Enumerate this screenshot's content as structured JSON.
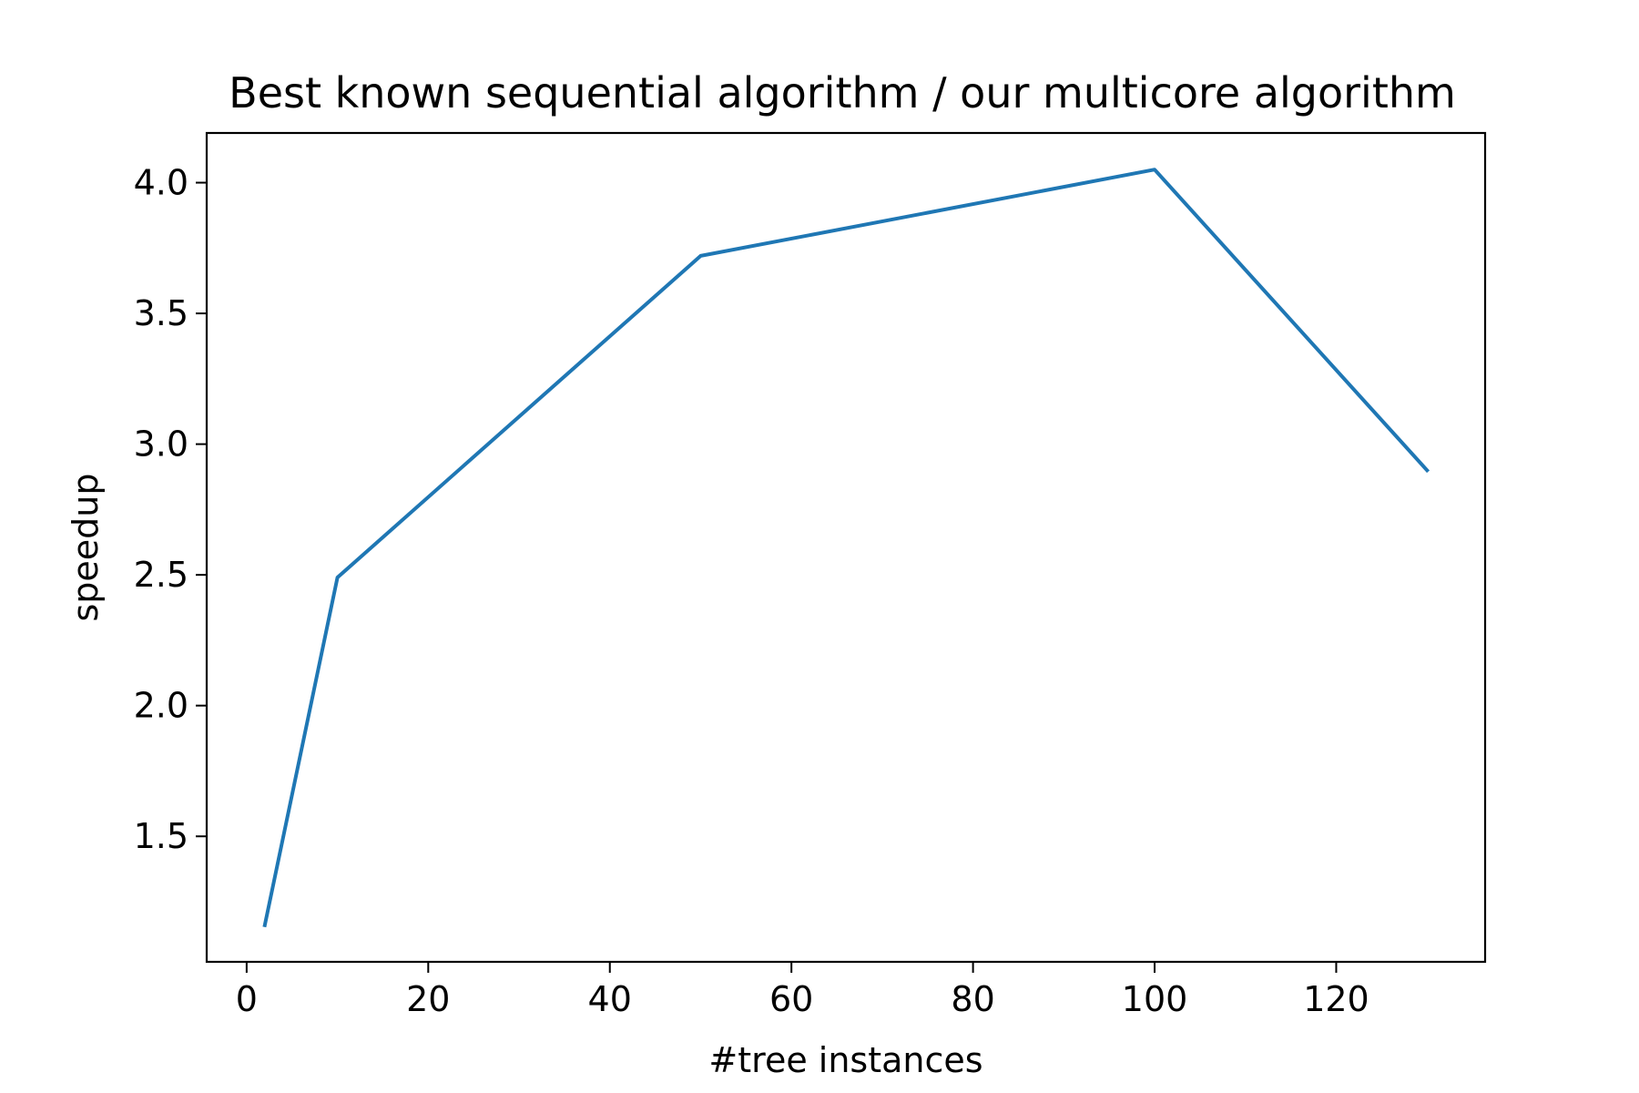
{
  "chart_data": {
    "type": "line",
    "title": "Best known sequential algorithm / our multicore algorithm",
    "xlabel": "#tree instances",
    "ylabel": "speedup",
    "xlim": [
      -4.4,
      136.4
    ],
    "ylim": [
      1.02,
      4.19
    ],
    "xticks": [
      0,
      20,
      40,
      60,
      80,
      100,
      120
    ],
    "yticks": [
      1.5,
      2.0,
      2.5,
      3.0,
      3.5,
      4.0
    ],
    "xtick_labels": [
      "0",
      "20",
      "40",
      "60",
      "80",
      "100",
      "120"
    ],
    "ytick_labels": [
      "1.5",
      "2.0",
      "2.5",
      "3.0",
      "3.5",
      "4.0"
    ],
    "grid": false,
    "series": [
      {
        "color": "#1f77b4",
        "x": [
          2,
          10,
          50,
          100,
          130
        ],
        "y": [
          1.16,
          2.49,
          3.72,
          4.05,
          2.9
        ]
      }
    ]
  }
}
